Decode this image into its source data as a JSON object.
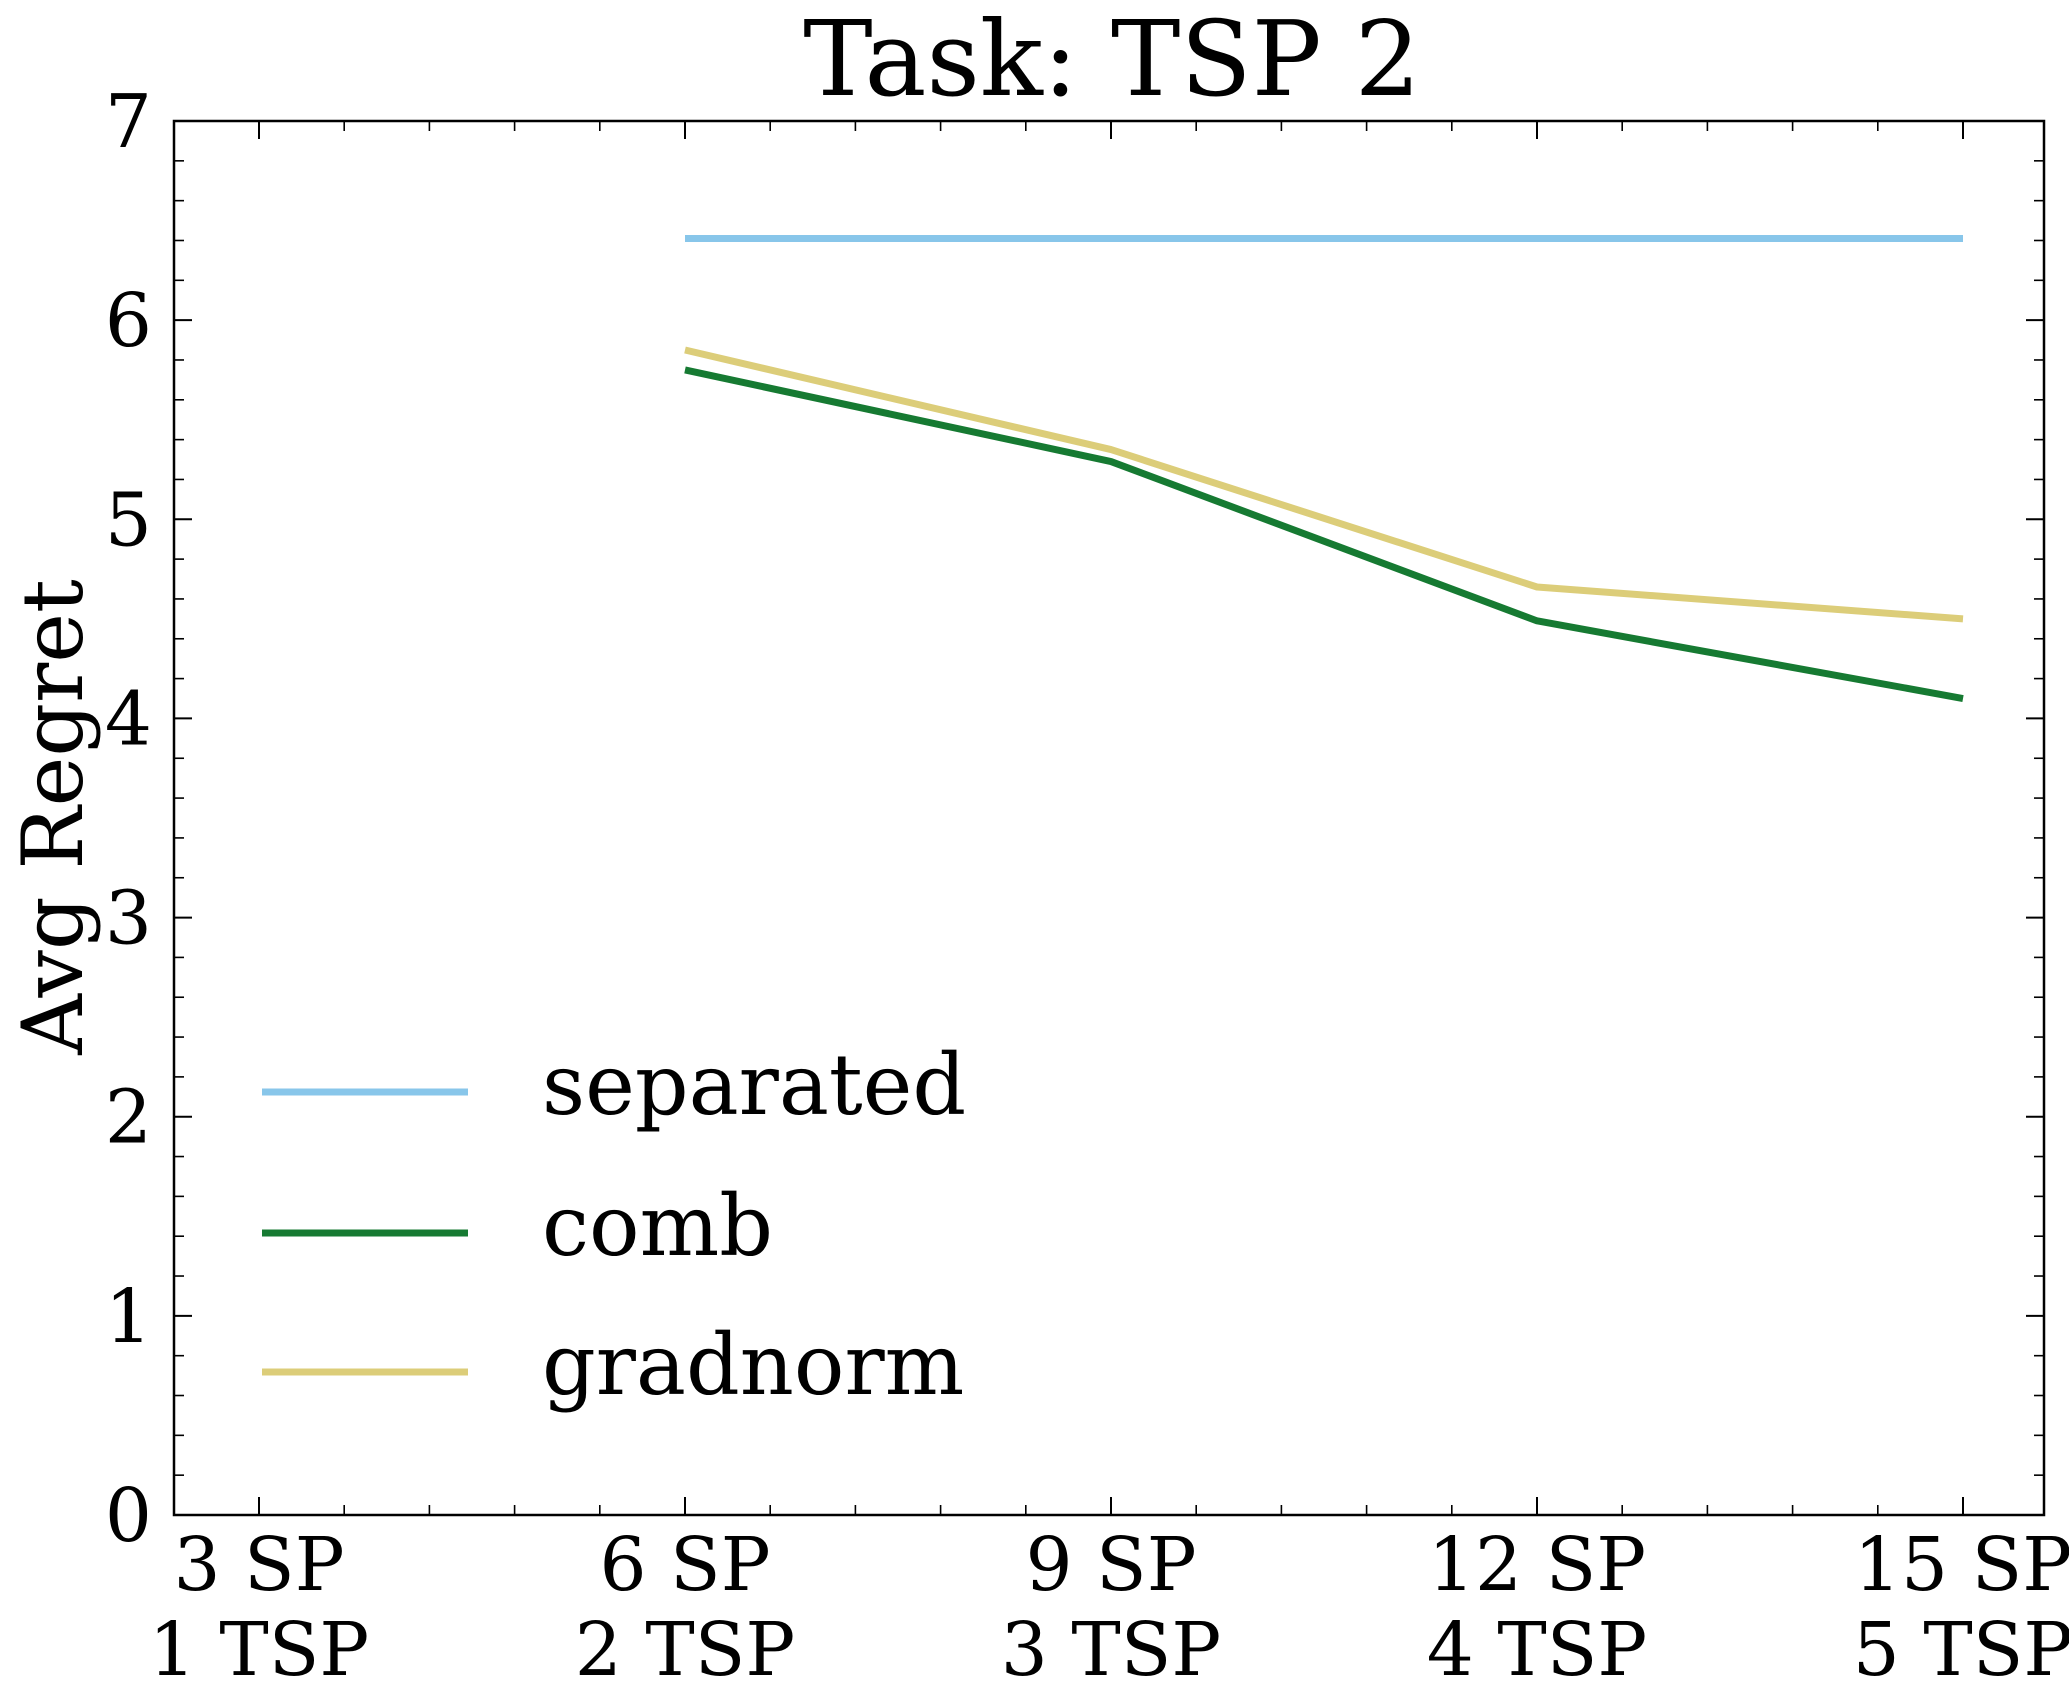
{
  "chart_data": {
    "type": "line",
    "title": "Task: TSP 2",
    "xlabel": "",
    "ylabel": "Avg Regret",
    "ylim": [
      0,
      7
    ],
    "yticks": [
      0,
      1,
      2,
      3,
      4,
      5,
      6,
      7
    ],
    "x": [
      0,
      1,
      2,
      3,
      4
    ],
    "categories": [
      {
        "line1": "3 SP",
        "line2": "1 TSP"
      },
      {
        "line1": "6 SP",
        "line2": "2 TSP"
      },
      {
        "line1": "9 SP",
        "line2": "3 TSP"
      },
      {
        "line1": "12 SP",
        "line2": "4 TSP"
      },
      {
        "line1": "15 SP",
        "line2": "5 TSP"
      }
    ],
    "grid": false,
    "legend_position": "lower-left",
    "series": [
      {
        "name": "separated",
        "color": "#88c6ea",
        "values": [
          null,
          6.41,
          6.41,
          6.41,
          6.41
        ]
      },
      {
        "name": "comb",
        "color": "#167a32",
        "values": [
          null,
          5.75,
          5.29,
          4.49,
          4.1
        ]
      },
      {
        "name": "gradnorm",
        "color": "#dccd79",
        "values": [
          null,
          5.85,
          5.35,
          4.66,
          4.5
        ]
      }
    ]
  }
}
